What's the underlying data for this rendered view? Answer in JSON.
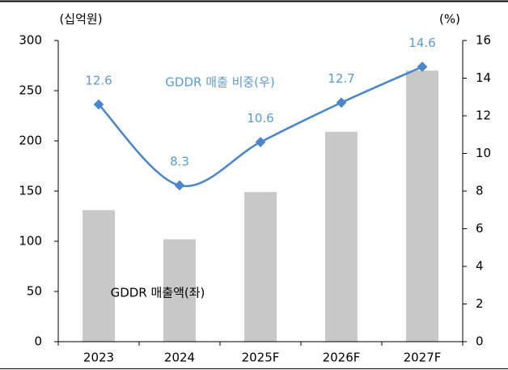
{
  "chart_data": {
    "type": "bar+line",
    "y_label": "(십억원)",
    "y2_label": "(%)",
    "categories": [
      "2023",
      "2024",
      "2025F",
      "2026F",
      "2027F"
    ],
    "series": [
      {
        "name": "GDDR 매출액(좌)",
        "type": "bar",
        "color": "#c8c8c8",
        "axis": "y",
        "values": [
          131,
          102,
          149,
          209,
          270
        ]
      },
      {
        "name": "GDDR 매출 비중(우)",
        "type": "line",
        "color": "#4a86c8",
        "label_color": "#5b9bd5",
        "axis": "y2",
        "values": [
          12.6,
          8.3,
          10.6,
          12.7,
          14.6
        ]
      }
    ],
    "ylim": [
      0,
      300
    ],
    "yticks": [
      0,
      50,
      100,
      150,
      200,
      250,
      300
    ],
    "y2lim": [
      0,
      16
    ],
    "y2ticks": [
      0,
      2,
      4,
      6,
      8,
      10,
      12,
      14,
      16
    ]
  }
}
